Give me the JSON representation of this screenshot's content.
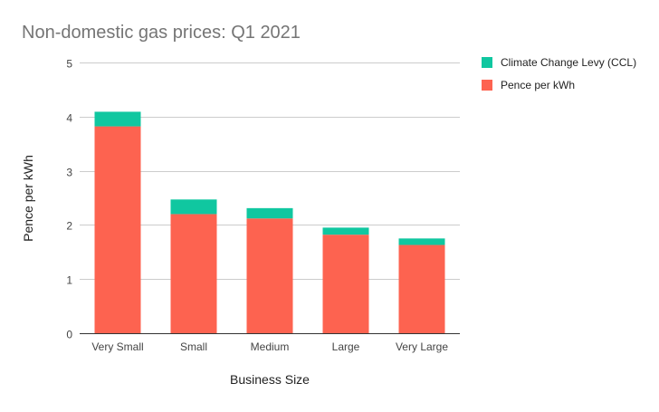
{
  "chart_data": {
    "type": "bar",
    "stacked": true,
    "title": "Non-domestic gas prices: Q1 2021",
    "xlabel": "Business Size",
    "ylabel": "Pence per kWh",
    "ylim": [
      0,
      5
    ],
    "yticks": [
      "0",
      "1",
      "2",
      "3",
      "4",
      "5"
    ],
    "grid": true,
    "legend_position": "top-right",
    "categories": [
      "Very Small",
      "Small",
      "Medium",
      "Large",
      "Very Large"
    ],
    "series": [
      {
        "name": "Pence per kWh",
        "color": "#fd6350",
        "values": [
          3.82,
          2.2,
          2.12,
          1.82,
          1.63
        ]
      },
      {
        "name": "Climate Change Levy (CCL)",
        "color": "#10c7a0",
        "values": [
          0.27,
          0.27,
          0.19,
          0.13,
          0.12
        ]
      }
    ],
    "legend_order": [
      1,
      0
    ]
  }
}
